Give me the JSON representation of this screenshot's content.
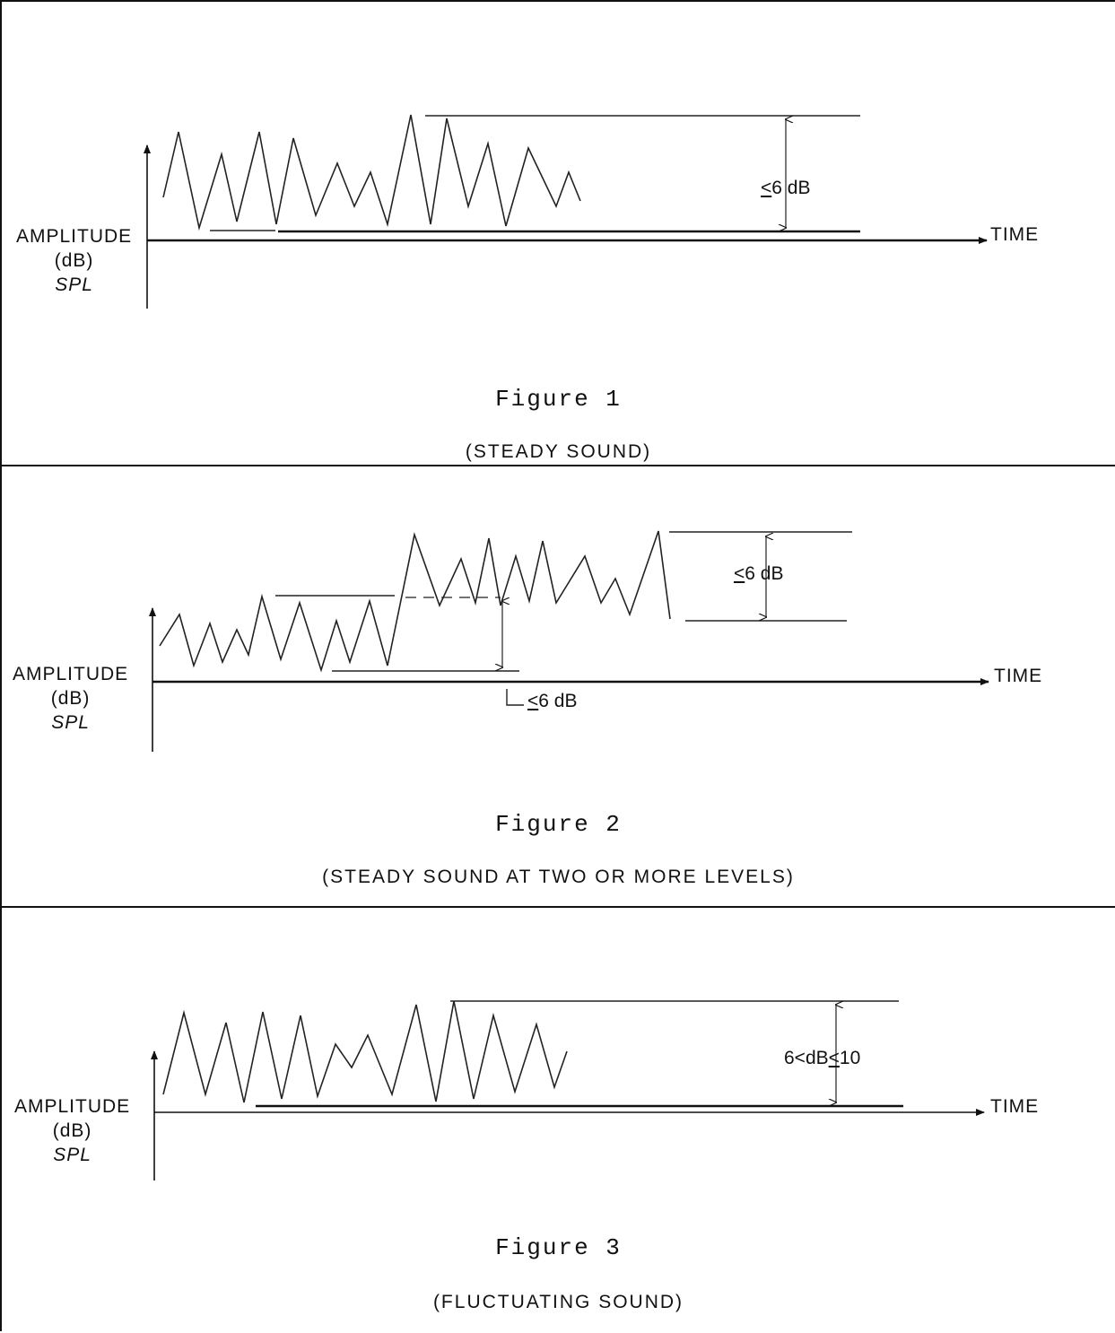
{
  "figures": [
    {
      "caption": "Figure 1",
      "subtitle": "(STEADY SOUND)",
      "y_label": {
        "line1": "AMPLITUDE",
        "line2": "(dB)",
        "line3": "SPL"
      },
      "x_label": "TIME",
      "annotations": [
        {
          "symbol": "<",
          "text": "6 dB"
        }
      ]
    },
    {
      "caption": "Figure 2",
      "subtitle": "(STEADY SOUND AT TWO OR MORE LEVELS)",
      "y_label": {
        "line1": "AMPLITUDE",
        "line2": "(dB)",
        "line3": "SPL"
      },
      "x_label": "TIME",
      "annotations": [
        {
          "symbol": "<",
          "text": "6 dB"
        },
        {
          "symbol": "<",
          "text": "6 dB"
        }
      ]
    },
    {
      "caption": "Figure 3",
      "subtitle": "(FLUCTUATING SOUND)",
      "y_label": {
        "line1": "AMPLITUDE",
        "line2": "(dB)",
        "line3": "SPL"
      },
      "x_label": "TIME",
      "annotations": [
        {
          "prefix": "6<",
          "mid": "dB",
          "symbol": "<",
          "suffix": "10"
        }
      ]
    }
  ]
}
